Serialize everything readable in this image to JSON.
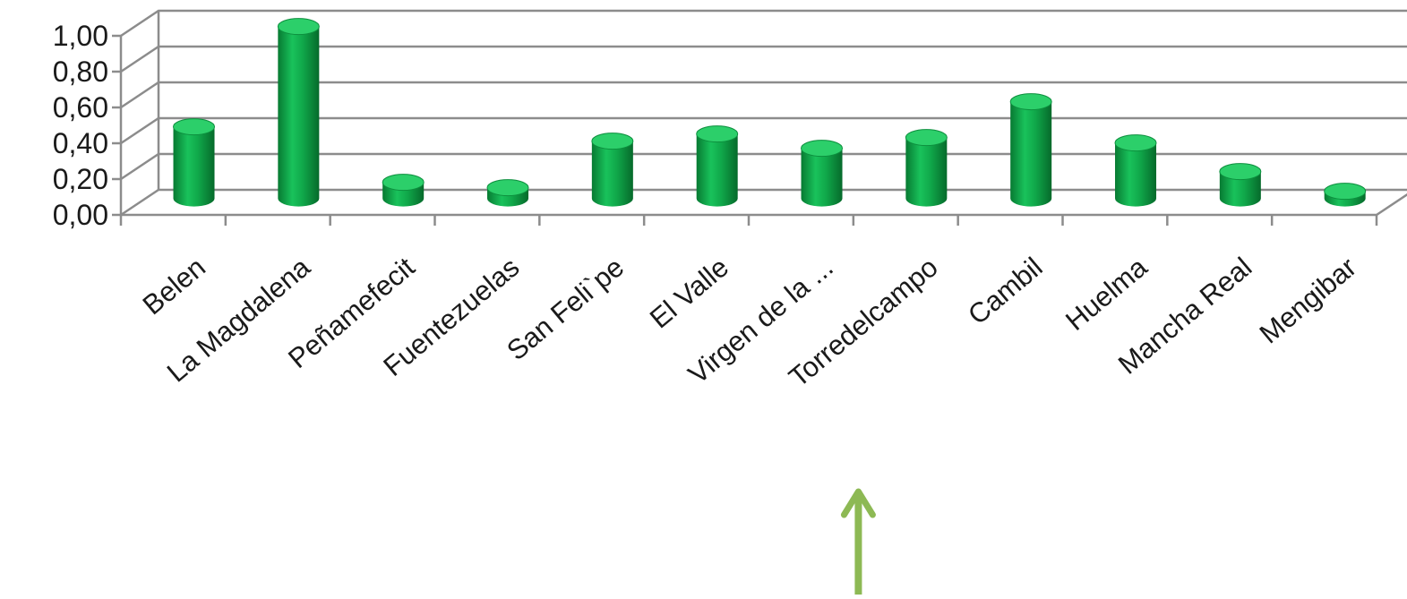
{
  "chart_data": {
    "type": "bar",
    "style": "3d-cylinder",
    "categories": [
      "Belen",
      "La Magdalena",
      "Peñamefecit",
      "Fuentezuelas",
      "San Feli`pe",
      "El Valle",
      "Virgen de la ...",
      "Torredelcampo",
      "Cambil",
      "Huelma",
      "Mancha Real",
      "Mengibar"
    ],
    "series": [
      {
        "values": [
          0.4,
          0.96,
          0.09,
          0.06,
          0.32,
          0.36,
          0.28,
          0.34,
          0.54,
          0.31,
          0.15,
          0.04
        ]
      }
    ],
    "yticks": [
      "0,00",
      "0,20",
      "0,40",
      "0,60",
      "0,80",
      "1,00"
    ],
    "ylim": [
      0,
      1
    ],
    "grid": true,
    "legend": false,
    "colors": {
      "bar": "#10a84a",
      "grid": "#8c8c8c",
      "arrow": "#8db954"
    }
  },
  "annotation": {
    "kind": "arrow-up",
    "target_category": "Virgen de la ..."
  }
}
